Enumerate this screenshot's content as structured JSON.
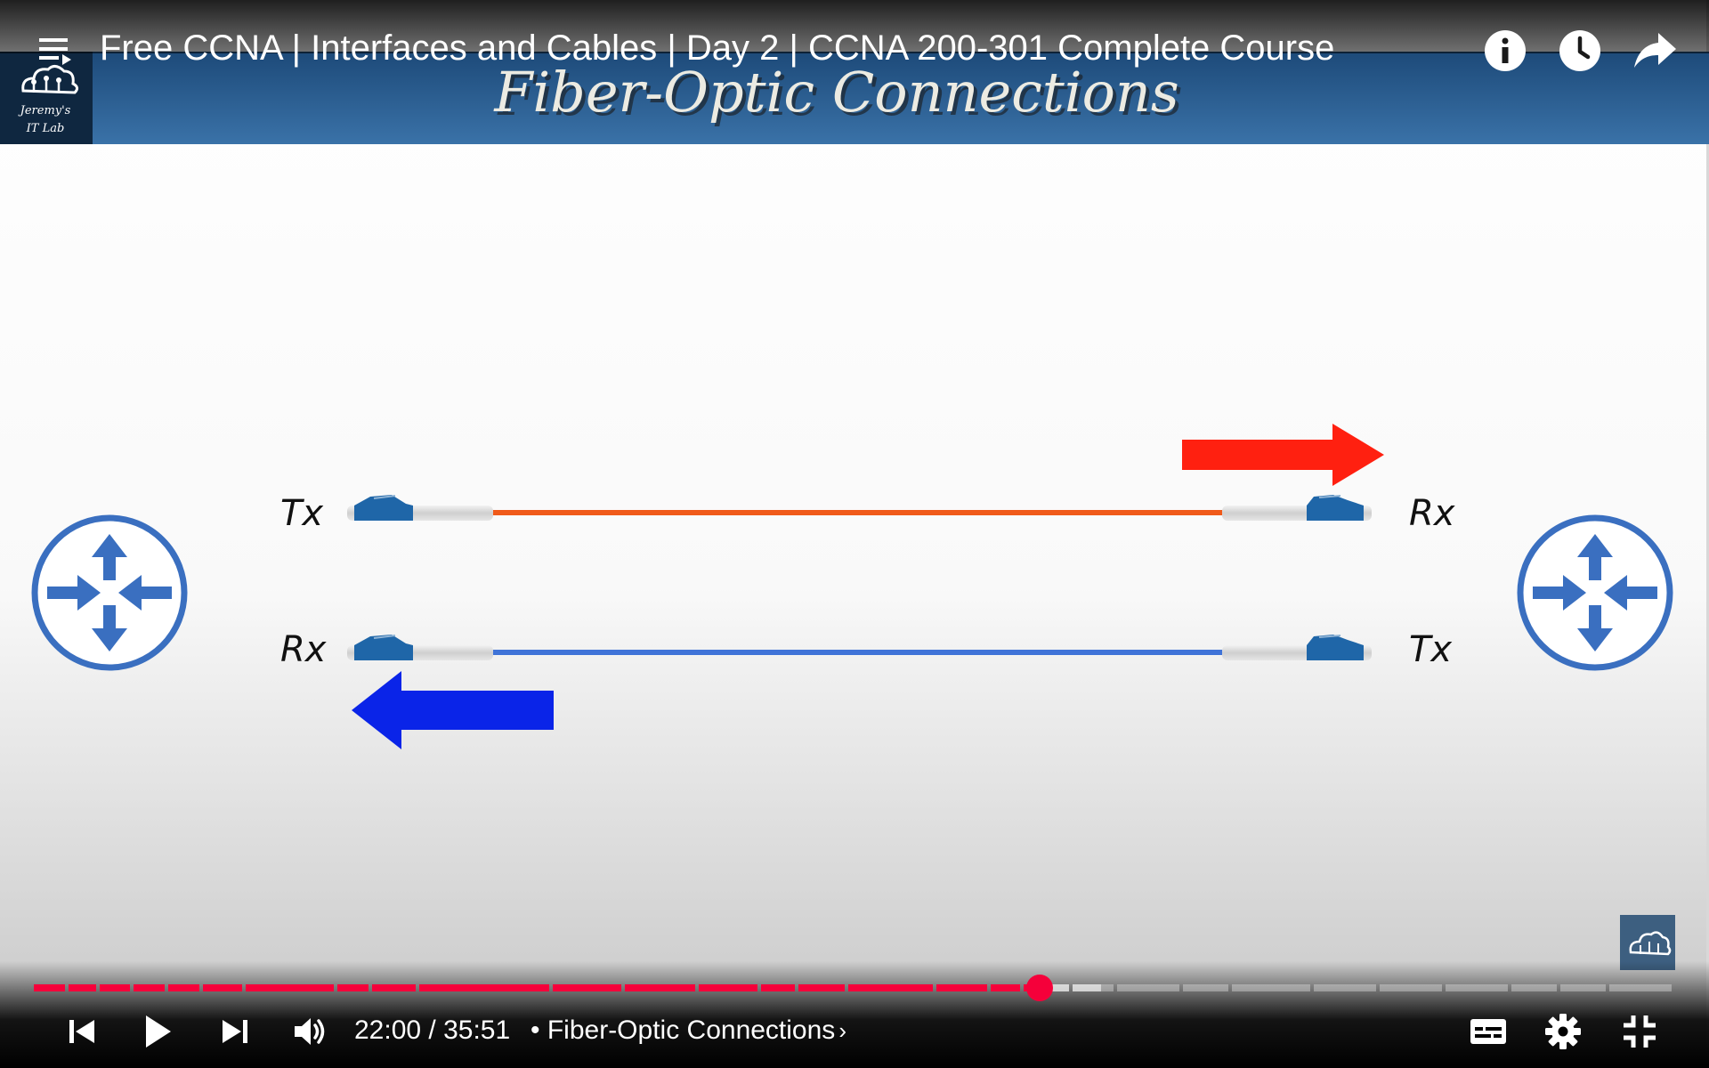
{
  "video": {
    "title": "Free CCNA | Interfaces and Cables | Day 2 | CCNA 200-301 Complete Course"
  },
  "slide": {
    "heading": "Fiber-Optic Connections",
    "logo": {
      "line1": "Jeremy's",
      "line2": "IT Lab"
    },
    "labels": {
      "left_top": "Tx",
      "left_bottom": "Rx",
      "right_top": "Rx",
      "right_bottom": "Tx"
    },
    "colors": {
      "banner": "#2f6496",
      "router": "#3a6fc0",
      "fiber_top": "#f05a1a",
      "fiber_bottom": "#3f73d8",
      "arrow_right": "#ff2010",
      "arrow_left": "#0a24e8",
      "connector": "#1f66a8"
    }
  },
  "player": {
    "time_current": "22:00",
    "time_total": "35:51",
    "time_display": "22:00 / 35:51",
    "chapter": "• Fiber-Optic Connections",
    "progress": 0.613,
    "buffered": 0.65,
    "accent_color": "#f5003a",
    "icons": {
      "playlist": "playlist-icon",
      "info": "info-icon",
      "watch_later": "clock-icon",
      "share": "share-icon",
      "previous": "previous-icon",
      "play": "play-icon",
      "next": "next-icon",
      "volume": "volume-icon",
      "subtitles": "subtitles-icon",
      "settings": "gear-icon",
      "exit_fullscreen": "exit-fullscreen-icon"
    }
  }
}
